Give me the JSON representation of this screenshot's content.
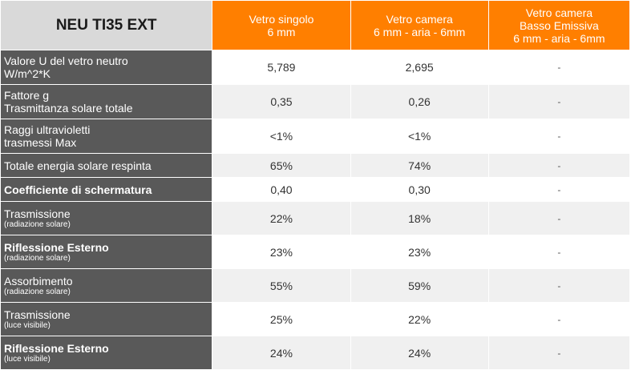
{
  "header": {
    "title": "NEU TI35 EXT",
    "columns": [
      [
        "Vetro singolo",
        "6 mm"
      ],
      [
        "Vetro camera",
        "6 mm - aria - 6mm"
      ],
      [
        "Vetro camera",
        "Basso Emissiva",
        "6 mm - aria - 6mm"
      ]
    ]
  },
  "rows": [
    {
      "label": [
        "Valore U del vetro neutro",
        "W/m^2*K"
      ],
      "sub": "",
      "values": [
        "5,789",
        "2,695",
        "-"
      ]
    },
    {
      "label": [
        "Fattore g",
        "Trasmittanza solare totale"
      ],
      "sub": "",
      "values": [
        "0,35",
        "0,26",
        "-"
      ]
    },
    {
      "label": [
        "Raggi ultravioletti",
        "trasmessi Max"
      ],
      "sub": "",
      "values": [
        "<1%",
        "<1%",
        "-"
      ]
    },
    {
      "label": [
        "Totale energia solare respinta"
      ],
      "sub": "",
      "values": [
        "65%",
        "74%",
        "-"
      ]
    },
    {
      "label": [
        "Coefficiente di schermatura"
      ],
      "sub": "",
      "values": [
        "0,40",
        "0,30",
        "-"
      ]
    },
    {
      "label": [
        "Trasmissione"
      ],
      "sub": "(radiazione solare)",
      "values": [
        "22%",
        "18%",
        "-"
      ]
    },
    {
      "label": [
        "Riflessione Esterno"
      ],
      "sub": "(radiazione solare)",
      "values": [
        "23%",
        "23%",
        "-"
      ]
    },
    {
      "label": [
        "Assorbimento"
      ],
      "sub": "(radiazione solare)",
      "values": [
        "55%",
        "59%",
        "-"
      ]
    },
    {
      "label": [
        "Trasmissione"
      ],
      "sub": "(luce visibile)",
      "values": [
        "25%",
        "22%",
        "-"
      ]
    },
    {
      "label": [
        "Riflessione Esterno"
      ],
      "sub": "(luce visibile)",
      "values": [
        "24%",
        "24%",
        "-"
      ]
    }
  ],
  "colors": {
    "header_orange": "#ff7f00",
    "header_gray": "#d9d9d9",
    "label_gray": "#595959",
    "row_alt": "#f0f0f0"
  }
}
